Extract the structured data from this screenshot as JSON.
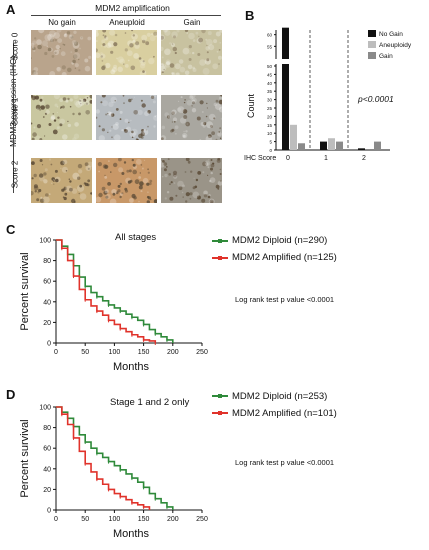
{
  "panel_a": {
    "letter": "A",
    "header": "MDM2 amplification",
    "columns": [
      "No gain",
      "Aneuploid",
      "Gain"
    ],
    "row_axis_label": "MDM2 expression (IHC)",
    "rows": [
      "Score 0",
      "Score 1",
      "Score 2"
    ],
    "tile_colors": [
      [
        "#b9a48c",
        "#d9cfa0",
        "#c8c2a0"
      ],
      [
        "#c9c7a0",
        "#b7bcc0",
        "#a9a7a0"
      ],
      [
        "#c4a978",
        "#c89868",
        "#9a9488"
      ]
    ]
  },
  "panel_b": {
    "letter": "B"
  },
  "panel_c": {
    "letter": "C",
    "subtitle": "All stages",
    "logrank": "Log rank test p value <0.0001",
    "legend": [
      "MDM2 Diploid (n=290)",
      "MDM2 Amplified (n=125)"
    ]
  },
  "panel_d": {
    "letter": "D",
    "subtitle": "Stage 1 and 2 only",
    "logrank": "Log rank test p value <0.0001",
    "legend": [
      "MDM2 Diploid (n=253)",
      "MDM2 Amplified (n=101)"
    ]
  },
  "chart_data": [
    {
      "type": "bar",
      "categories": [
        "0",
        "1",
        "2"
      ],
      "xlabel": "IHC Score",
      "ylabel": "Count",
      "y_axis_broken": true,
      "yticks_lower": [
        0,
        5,
        10,
        15,
        20,
        25,
        30,
        35,
        40,
        45,
        50
      ],
      "yticks_upper": [
        55,
        60
      ],
      "series": [
        {
          "name": "No Gain",
          "color": "#111111",
          "values": [
            63,
            5,
            1
          ]
        },
        {
          "name": "Aneuploidy",
          "color": "#bdbdbd",
          "values": [
            15,
            7,
            0
          ]
        },
        {
          "name": "Gain",
          "color": "#8a8a8a",
          "values": [
            4,
            5,
            5
          ]
        }
      ],
      "annotation": "p<0.0001",
      "legend_position": "top-right"
    },
    {
      "type": "line",
      "ylabel": "Percent survival",
      "xlabel": "Months",
      "xlim": [
        0,
        250
      ],
      "ylim": [
        0,
        100
      ],
      "xticks": [
        0,
        50,
        100,
        150,
        200,
        250
      ],
      "yticks": [
        0,
        20,
        40,
        60,
        80,
        100
      ],
      "series": [
        {
          "name": "MDM2 Diploid (n=290)",
          "color": "#2f8a3a",
          "x": [
            0,
            10,
            20,
            30,
            40,
            50,
            60,
            70,
            80,
            90,
            100,
            110,
            120,
            130,
            140,
            150,
            160,
            170,
            180,
            190,
            200
          ],
          "y": [
            100,
            94,
            86,
            75,
            64,
            55,
            49,
            45,
            41,
            37,
            34,
            31,
            28,
            25,
            22,
            18,
            13,
            9,
            6,
            3,
            0
          ]
        },
        {
          "name": "MDM2 Amplified (n=125)",
          "color": "#e0332b",
          "x": [
            0,
            10,
            20,
            30,
            40,
            50,
            60,
            70,
            80,
            90,
            100,
            110,
            120,
            130,
            140,
            150,
            160,
            170
          ],
          "y": [
            100,
            92,
            80,
            65,
            52,
            42,
            36,
            31,
            27,
            22,
            18,
            14,
            11,
            8,
            6,
            3,
            2,
            0
          ]
        }
      ]
    },
    {
      "type": "line",
      "ylabel": "Percent survival",
      "xlabel": "Months",
      "xlim": [
        0,
        250
      ],
      "ylim": [
        0,
        100
      ],
      "xticks": [
        0,
        50,
        100,
        150,
        200,
        250
      ],
      "yticks": [
        0,
        20,
        40,
        60,
        80,
        100
      ],
      "series": [
        {
          "name": "MDM2 Diploid (n=253)",
          "color": "#2f8a3a",
          "x": [
            0,
            10,
            20,
            30,
            40,
            50,
            60,
            70,
            80,
            90,
            100,
            110,
            120,
            130,
            140,
            150,
            160,
            170,
            180,
            190,
            200
          ],
          "y": [
            100,
            95,
            89,
            81,
            73,
            66,
            60,
            55,
            51,
            47,
            43,
            39,
            35,
            31,
            27,
            22,
            16,
            11,
            7,
            3,
            0
          ]
        },
        {
          "name": "MDM2 Amplified (n=101)",
          "color": "#e0332b",
          "x": [
            0,
            10,
            20,
            30,
            40,
            50,
            60,
            70,
            80,
            90,
            100,
            110,
            120,
            130,
            140,
            150,
            160
          ],
          "y": [
            100,
            93,
            83,
            70,
            57,
            45,
            37,
            30,
            25,
            20,
            16,
            13,
            10,
            7,
            5,
            3,
            0
          ]
        }
      ]
    }
  ]
}
